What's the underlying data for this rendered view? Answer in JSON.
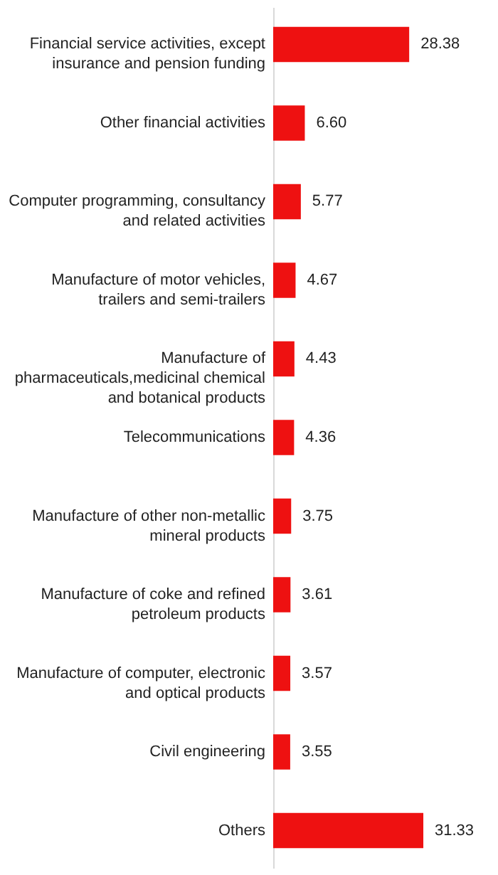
{
  "chart_data": {
    "type": "bar",
    "orientation": "horizontal",
    "data_labels": true,
    "categories": [
      "Financial service activities, except\ninsurance and pension funding",
      "Other financial activities",
      "Computer programming, consultancy\nand related activities",
      "Manufacture of motor vehicles,\ntrailers and semi-trailers",
      "Manufacture of\npharmaceuticals,medicinal chemical\nand botanical products",
      "Telecommunications",
      "Manufacture of other non-metallic\nmineral products",
      "Manufacture of coke and refined\npetroleum products",
      "Manufacture of computer, electronic\nand optical products",
      "Civil engineering",
      "Others"
    ],
    "values": [
      28.38,
      6.6,
      5.77,
      4.67,
      4.43,
      4.36,
      3.75,
      3.61,
      3.57,
      3.55,
      31.33
    ],
    "value_labels": [
      "28.38",
      "6.60",
      "5.77",
      "4.67",
      "4.43",
      "4.36",
      "3.75",
      "3.61",
      "3.57",
      "3.55",
      "31.33"
    ],
    "color": "#ee1111"
  }
}
